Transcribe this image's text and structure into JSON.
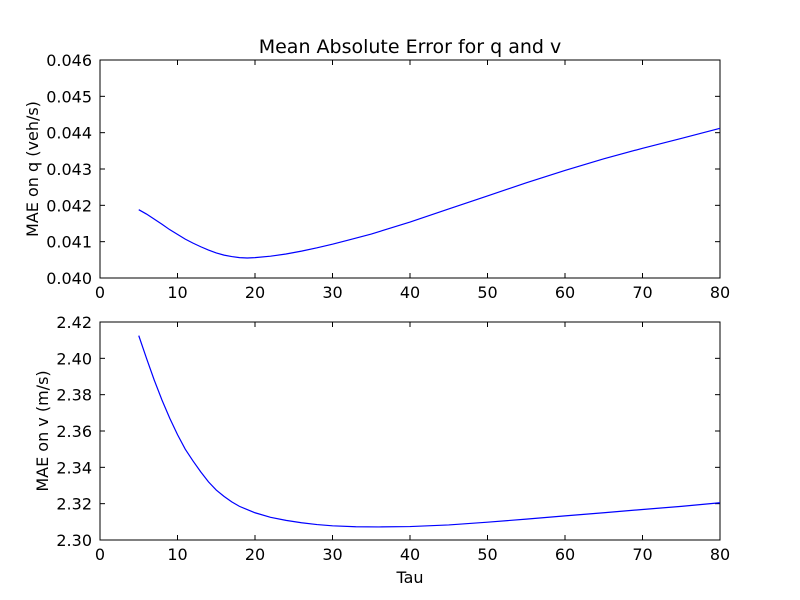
{
  "chart_data": [
    {
      "type": "line",
      "title": "Mean Absolute Error for q and v",
      "xlabel": "",
      "ylabel": "MAE on q (veh/s)",
      "xlim": [
        0,
        80
      ],
      "ylim": [
        0.04,
        0.046
      ],
      "xticks": [
        "0",
        "10",
        "20",
        "30",
        "40",
        "50",
        "60",
        "70",
        "80"
      ],
      "yticks": [
        "0.040",
        "0.041",
        "0.042",
        "0.043",
        "0.044",
        "0.045",
        "0.046"
      ],
      "grid": false,
      "line_color": "#0000ff",
      "series": [
        {
          "x": [
            5,
            6,
            7,
            8,
            9,
            10,
            11,
            12,
            13,
            14,
            15,
            16,
            17,
            18,
            19,
            20,
            22,
            24,
            26,
            28,
            30,
            32,
            35,
            40,
            45,
            50,
            55,
            60,
            65,
            70,
            75,
            80
          ],
          "values": [
            0.04188,
            0.04176,
            0.04162,
            0.04148,
            0.04133,
            0.0412,
            0.04107,
            0.04096,
            0.04086,
            0.04077,
            0.04069,
            0.04063,
            0.04059,
            0.04056,
            0.04055,
            0.04056,
            0.0406,
            0.04066,
            0.04074,
            0.04083,
            0.04093,
            0.04104,
            0.04121,
            0.04154,
            0.0419,
            0.04226,
            0.04262,
            0.04296,
            0.04328,
            0.04357,
            0.04384,
            0.04412
          ]
        }
      ]
    },
    {
      "type": "line",
      "title": "",
      "xlabel": "Tau",
      "ylabel": "MAE on v (m/s)",
      "xlim": [
        0,
        80
      ],
      "ylim": [
        2.3,
        2.42
      ],
      "xticks": [
        "0",
        "10",
        "20",
        "30",
        "40",
        "50",
        "60",
        "70",
        "80"
      ],
      "yticks": [
        "2.30",
        "2.32",
        "2.34",
        "2.36",
        "2.38",
        "2.40",
        "2.42"
      ],
      "grid": false,
      "line_color": "#0000ff",
      "series": [
        {
          "x": [
            5,
            6,
            7,
            8,
            9,
            10,
            11,
            12,
            13,
            14,
            15,
            16,
            17,
            18,
            20,
            22,
            24,
            26,
            28,
            30,
            33,
            36,
            40,
            45,
            50,
            55,
            60,
            65,
            70,
            75,
            80
          ],
          "values": [
            2.4125,
            2.4,
            2.388,
            2.377,
            2.367,
            2.358,
            2.35,
            2.3435,
            2.3375,
            2.332,
            2.3275,
            2.324,
            2.321,
            2.3185,
            2.315,
            2.3125,
            2.3108,
            2.3095,
            2.3085,
            2.3078,
            2.3073,
            2.3072,
            2.3074,
            2.3083,
            2.3098,
            2.3115,
            2.3133,
            2.315,
            2.3168,
            2.3185,
            2.3205
          ]
        }
      ]
    }
  ]
}
